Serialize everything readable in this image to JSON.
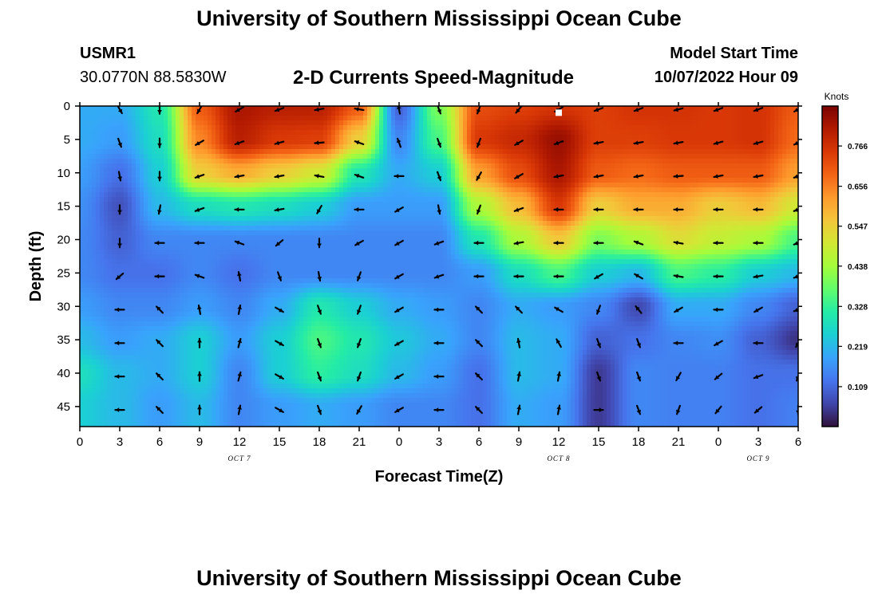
{
  "header": {
    "title": "University of Southern Mississippi Ocean Cube",
    "station_id": "USMR1",
    "coordinates": "30.0770N  88.5830W",
    "subtitle": "2-D Currents Speed-Magnitude",
    "start_label": "Model Start Time",
    "start_value": "10/07/2022 Hour 09"
  },
  "footer": {
    "title": "University of Southern Mississippi Ocean Cube"
  },
  "chart_data": {
    "type": "heatmap",
    "title": "2-D Currents Speed-Magnitude",
    "xlabel": "Forecast Time(Z)",
    "ylabel": "Depth (ft)",
    "x_ticks": [
      "0",
      "3",
      "6",
      "9",
      "12",
      "15",
      "18",
      "21",
      "0",
      "3",
      "6",
      "9",
      "12",
      "15",
      "18",
      "21",
      "0",
      "3",
      "6"
    ],
    "x_date_labels": [
      {
        "tick_index": 4,
        "text": "OCT 7"
      },
      {
        "tick_index": 12,
        "text": "OCT 8"
      },
      {
        "tick_index": 17,
        "text": "OCT 9"
      }
    ],
    "x_range_hours": [
      0,
      54
    ],
    "y_ticks": [
      "0",
      "5",
      "10",
      "15",
      "20",
      "25",
      "30",
      "35",
      "40",
      "45"
    ],
    "ylim": [
      0,
      48
    ],
    "y_reversed": true,
    "colorbar": {
      "title": "Knots",
      "tick_labels": [
        "0.766",
        "0.656",
        "0.547",
        "0.438",
        "0.328",
        "0.219",
        "0.109"
      ],
      "tick_values": [
        0.766,
        0.656,
        0.547,
        0.438,
        0.328,
        0.219,
        0.109
      ],
      "range": [
        0.0,
        0.875
      ],
      "colormap": [
        "#30123b",
        "#4145ab",
        "#4675ed",
        "#39a2fc",
        "#1bcfd4",
        "#24eca6",
        "#61fc6c",
        "#a4fc3b",
        "#d1e834",
        "#f3c63a",
        "#fe9b2d",
        "#f36315",
        "#d93806",
        "#b11901",
        "#7a0402"
      ]
    },
    "speed_points": [
      {
        "hour": 0,
        "values": [
          0.2,
          0.2,
          0.18,
          0.16,
          0.15,
          0.15,
          0.18,
          0.22,
          0.28,
          0.25
        ]
      },
      {
        "hour": 3,
        "values": [
          0.2,
          0.18,
          0.12,
          0.08,
          0.1,
          0.12,
          0.15,
          0.18,
          0.22,
          0.22
        ]
      },
      {
        "hour": 6,
        "values": [
          0.3,
          0.28,
          0.25,
          0.22,
          0.15,
          0.12,
          0.15,
          0.2,
          0.2,
          0.18
        ]
      },
      {
        "hour": 9,
        "values": [
          0.7,
          0.65,
          0.55,
          0.28,
          0.15,
          0.15,
          0.18,
          0.25,
          0.25,
          0.22
        ]
      },
      {
        "hour": 12,
        "values": [
          0.82,
          0.8,
          0.6,
          0.3,
          0.15,
          0.12,
          0.15,
          0.18,
          0.15,
          0.15
        ]
      },
      {
        "hour": 15,
        "values": [
          0.8,
          0.75,
          0.55,
          0.28,
          0.15,
          0.15,
          0.2,
          0.25,
          0.25,
          0.18
        ]
      },
      {
        "hour": 18,
        "values": [
          0.8,
          0.74,
          0.5,
          0.25,
          0.15,
          0.15,
          0.3,
          0.35,
          0.32,
          0.2
        ]
      },
      {
        "hour": 21,
        "values": [
          0.7,
          0.55,
          0.3,
          0.18,
          0.15,
          0.15,
          0.25,
          0.3,
          0.28,
          0.18
        ]
      },
      {
        "hour": 24,
        "values": [
          0.1,
          0.15,
          0.2,
          0.18,
          0.15,
          0.15,
          0.2,
          0.24,
          0.22,
          0.15
        ]
      },
      {
        "hour": 27,
        "values": [
          0.4,
          0.35,
          0.25,
          0.18,
          0.15,
          0.15,
          0.18,
          0.2,
          0.18,
          0.15
        ]
      },
      {
        "hour": 30,
        "values": [
          0.72,
          0.75,
          0.62,
          0.45,
          0.3,
          0.18,
          0.15,
          0.15,
          0.12,
          0.12
        ]
      },
      {
        "hour": 33,
        "values": [
          0.74,
          0.78,
          0.72,
          0.58,
          0.45,
          0.28,
          0.2,
          0.22,
          0.22,
          0.2
        ]
      },
      {
        "hour": 36,
        "values": [
          0.76,
          0.84,
          0.82,
          0.75,
          0.56,
          0.35,
          0.18,
          0.2,
          0.2,
          0.18
        ]
      },
      {
        "hour": 39,
        "values": [
          0.74,
          0.74,
          0.7,
          0.55,
          0.4,
          0.25,
          0.15,
          0.1,
          0.05,
          0.05
        ]
      },
      {
        "hour": 42,
        "values": [
          0.76,
          0.74,
          0.68,
          0.6,
          0.45,
          0.22,
          0.07,
          0.12,
          0.15,
          0.15
        ]
      },
      {
        "hour": 45,
        "values": [
          0.76,
          0.75,
          0.7,
          0.6,
          0.52,
          0.35,
          0.2,
          0.15,
          0.14,
          0.14
        ]
      },
      {
        "hour": 48,
        "values": [
          0.75,
          0.75,
          0.7,
          0.55,
          0.48,
          0.32,
          0.2,
          0.16,
          0.14,
          0.14
        ]
      },
      {
        "hour": 51,
        "values": [
          0.76,
          0.76,
          0.7,
          0.58,
          0.45,
          0.25,
          0.15,
          0.1,
          0.12,
          0.12
        ]
      },
      {
        "hour": 54,
        "values": [
          0.7,
          0.68,
          0.62,
          0.5,
          0.35,
          0.22,
          0.1,
          0.04,
          0.12,
          0.14
        ]
      }
    ],
    "vector_points": [
      {
        "hour": 3,
        "dirs_deg": [
          150,
          160,
          170,
          180,
          180,
          230,
          270,
          270,
          270,
          270
        ]
      },
      {
        "hour": 6,
        "dirs_deg": [
          180,
          180,
          180,
          190,
          270,
          270,
          315,
          315,
          315,
          315
        ]
      },
      {
        "hour": 9,
        "dirs_deg": [
          210,
          240,
          250,
          250,
          270,
          290,
          350,
          0,
          0,
          0
        ]
      },
      {
        "hour": 12,
        "dirs_deg": [
          240,
          250,
          260,
          270,
          290,
          350,
          10,
          15,
          15,
          10
        ]
      },
      {
        "hour": 15,
        "dirs_deg": [
          250,
          255,
          260,
          260,
          230,
          160,
          120,
          120,
          120,
          120
        ]
      },
      {
        "hour": 18,
        "dirs_deg": [
          260,
          265,
          280,
          210,
          180,
          170,
          160,
          160,
          160,
          160
        ]
      },
      {
        "hour": 21,
        "dirs_deg": [
          280,
          290,
          290,
          270,
          240,
          200,
          200,
          200,
          200,
          210
        ]
      },
      {
        "hour": 24,
        "dirs_deg": [
          350,
          340,
          270,
          240,
          240,
          240,
          240,
          240,
          240,
          240
        ]
      },
      {
        "hour": 27,
        "dirs_deg": [
          160,
          160,
          160,
          170,
          250,
          250,
          270,
          270,
          270,
          270
        ]
      },
      {
        "hour": 30,
        "dirs_deg": [
          200,
          200,
          210,
          200,
          270,
          270,
          315,
          315,
          315,
          315
        ]
      },
      {
        "hour": 33,
        "dirs_deg": [
          220,
          240,
          240,
          250,
          260,
          270,
          315,
          350,
          10,
          10
        ]
      },
      {
        "hour": 36,
        "dirs_deg": [
          240,
          250,
          260,
          270,
          270,
          270,
          300,
          330,
          10,
          10
        ]
      },
      {
        "hour": 39,
        "dirs_deg": [
          250,
          260,
          260,
          270,
          270,
          240,
          200,
          160,
          160,
          90
        ]
      },
      {
        "hour": 42,
        "dirs_deg": [
          250,
          260,
          260,
          270,
          290,
          300,
          320,
          160,
          160,
          160
        ]
      },
      {
        "hour": 45,
        "dirs_deg": [
          255,
          260,
          265,
          270,
          280,
          280,
          240,
          270,
          210,
          200
        ]
      },
      {
        "hour": 48,
        "dirs_deg": [
          250,
          255,
          260,
          270,
          270,
          270,
          270,
          240,
          230,
          220
        ]
      },
      {
        "hour": 51,
        "dirs_deg": [
          250,
          255,
          260,
          270,
          270,
          260,
          240,
          270,
          250,
          230
        ]
      },
      {
        "hour": 54,
        "dirs_deg": [
          240,
          245,
          250,
          250,
          250,
          250,
          250,
          210,
          200,
          180
        ]
      }
    ],
    "marker": {
      "hour": 36,
      "depth_ft": 1,
      "color": "#ffffff"
    },
    "grid": false
  }
}
